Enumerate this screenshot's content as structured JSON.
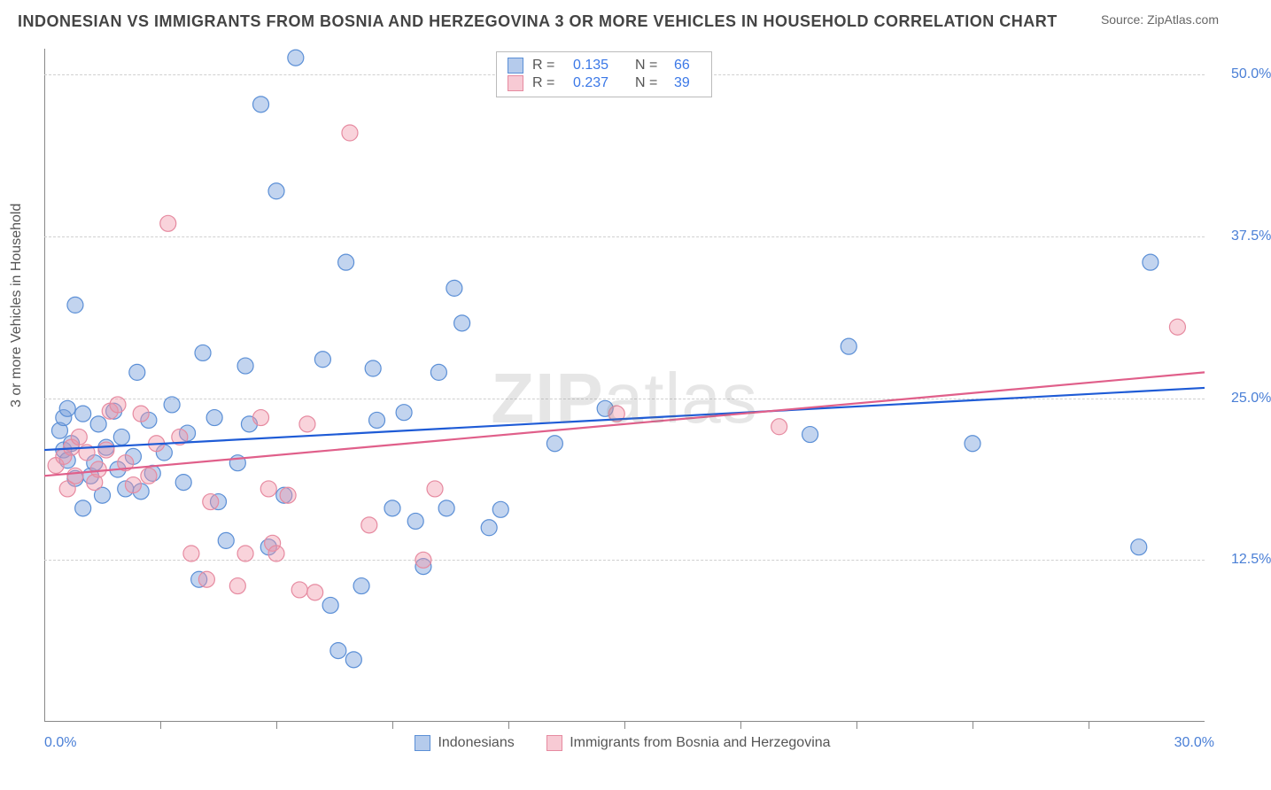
{
  "title": "INDONESIAN VS IMMIGRANTS FROM BOSNIA AND HERZEGOVINA 3 OR MORE VEHICLES IN HOUSEHOLD CORRELATION CHART",
  "source_label": "Source:",
  "source_value": "ZipAtlas.com",
  "yaxis_label": "3 or more Vehicles in Household",
  "watermark_a": "ZIP",
  "watermark_b": "atlas",
  "chart": {
    "type": "scatter",
    "xlim": [
      0,
      30
    ],
    "ylim": [
      0,
      52
    ],
    "ytick_positions": [
      12.5,
      25.0,
      37.5,
      50.0
    ],
    "ytick_labels": [
      "12.5%",
      "25.0%",
      "37.5%",
      "50.0%"
    ],
    "xtick_positions": [
      3,
      6,
      9,
      12,
      15,
      18,
      21,
      24,
      27
    ],
    "xlabel_start": "0.0%",
    "xlabel_end": "30.0%",
    "grid_color": "#d0d0d0",
    "background_color": "#ffffff",
    "marker_radius": 9,
    "marker_stroke_width": 1.2,
    "series": [
      {
        "name": "Indonesians",
        "fill": "rgba(120,160,220,0.45)",
        "stroke": "#5b8fd6",
        "R": "0.135",
        "N": "66",
        "trend": {
          "y_at_x0": 21.0,
          "y_at_xmax": 25.8,
          "color": "#1e5bd6",
          "width": 2.2
        },
        "points": [
          [
            0.4,
            22.5
          ],
          [
            0.5,
            21.0
          ],
          [
            0.5,
            23.5
          ],
          [
            0.6,
            20.2
          ],
          [
            0.6,
            24.2
          ],
          [
            0.7,
            21.5
          ],
          [
            0.8,
            18.8
          ],
          [
            0.8,
            32.2
          ],
          [
            1.0,
            16.5
          ],
          [
            1.0,
            23.8
          ],
          [
            1.2,
            19.0
          ],
          [
            1.3,
            20.0
          ],
          [
            1.4,
            23.0
          ],
          [
            1.5,
            17.5
          ],
          [
            1.6,
            21.2
          ],
          [
            1.8,
            24.0
          ],
          [
            1.9,
            19.5
          ],
          [
            2.0,
            22.0
          ],
          [
            2.1,
            18.0
          ],
          [
            2.3,
            20.5
          ],
          [
            2.4,
            27.0
          ],
          [
            2.5,
            17.8
          ],
          [
            2.7,
            23.3
          ],
          [
            2.8,
            19.2
          ],
          [
            3.1,
            20.8
          ],
          [
            3.3,
            24.5
          ],
          [
            3.6,
            18.5
          ],
          [
            3.7,
            22.3
          ],
          [
            4.0,
            11.0
          ],
          [
            4.1,
            28.5
          ],
          [
            4.4,
            23.5
          ],
          [
            4.5,
            17.0
          ],
          [
            4.7,
            14.0
          ],
          [
            5.0,
            20.0
          ],
          [
            5.2,
            27.5
          ],
          [
            5.3,
            23.0
          ],
          [
            5.6,
            47.7
          ],
          [
            5.8,
            13.5
          ],
          [
            6.0,
            41.0
          ],
          [
            6.2,
            17.5
          ],
          [
            6.5,
            51.3
          ],
          [
            7.2,
            28.0
          ],
          [
            7.4,
            9.0
          ],
          [
            7.6,
            5.5
          ],
          [
            7.8,
            35.5
          ],
          [
            8.0,
            4.8
          ],
          [
            8.2,
            10.5
          ],
          [
            8.5,
            27.3
          ],
          [
            8.6,
            23.3
          ],
          [
            9.0,
            16.5
          ],
          [
            9.3,
            23.9
          ],
          [
            9.6,
            15.5
          ],
          [
            9.8,
            12.0
          ],
          [
            10.2,
            27.0
          ],
          [
            10.4,
            16.5
          ],
          [
            10.6,
            33.5
          ],
          [
            10.8,
            30.8
          ],
          [
            11.5,
            15.0
          ],
          [
            11.8,
            16.4
          ],
          [
            13.2,
            21.5
          ],
          [
            14.5,
            24.2
          ],
          [
            19.8,
            22.2
          ],
          [
            20.8,
            29.0
          ],
          [
            24.0,
            21.5
          ],
          [
            28.3,
            13.5
          ],
          [
            28.6,
            35.5
          ]
        ]
      },
      {
        "name": "Immigrants from Bosnia and Herzegovina",
        "fill": "rgba(240,150,170,0.42)",
        "stroke": "#e68aa0",
        "R": "0.237",
        "N": "39",
        "trend": {
          "y_at_x0": 19.0,
          "y_at_xmax": 27.0,
          "color": "#e05f8a",
          "width": 2.2
        },
        "points": [
          [
            0.3,
            19.8
          ],
          [
            0.5,
            20.5
          ],
          [
            0.6,
            18.0
          ],
          [
            0.7,
            21.2
          ],
          [
            0.8,
            19.0
          ],
          [
            0.9,
            22.0
          ],
          [
            1.1,
            20.8
          ],
          [
            1.3,
            18.5
          ],
          [
            1.4,
            19.5
          ],
          [
            1.6,
            21.0
          ],
          [
            1.7,
            24.0
          ],
          [
            1.9,
            24.5
          ],
          [
            2.1,
            20.0
          ],
          [
            2.3,
            18.3
          ],
          [
            2.5,
            23.8
          ],
          [
            2.7,
            19.0
          ],
          [
            2.9,
            21.5
          ],
          [
            3.2,
            38.5
          ],
          [
            3.5,
            22.0
          ],
          [
            3.8,
            13.0
          ],
          [
            4.2,
            11.0
          ],
          [
            4.3,
            17.0
          ],
          [
            5.0,
            10.5
          ],
          [
            5.2,
            13.0
          ],
          [
            5.6,
            23.5
          ],
          [
            5.8,
            18.0
          ],
          [
            5.9,
            13.8
          ],
          [
            6.0,
            13.0
          ],
          [
            6.3,
            17.5
          ],
          [
            6.6,
            10.2
          ],
          [
            6.8,
            23.0
          ],
          [
            7.0,
            10.0
          ],
          [
            7.9,
            45.5
          ],
          [
            8.4,
            15.2
          ],
          [
            9.8,
            12.5
          ],
          [
            10.1,
            18.0
          ],
          [
            14.8,
            23.8
          ],
          [
            19.0,
            22.8
          ],
          [
            29.3,
            30.5
          ]
        ]
      }
    ]
  },
  "bottom_legend": {
    "items": [
      {
        "swatch_class": "blue",
        "label": "Indonesians"
      },
      {
        "swatch_class": "pink",
        "label": "Immigrants from Bosnia and Herzegovina"
      }
    ]
  },
  "stats_legend": {
    "r_label": "R  =",
    "n_label": "N  ="
  }
}
